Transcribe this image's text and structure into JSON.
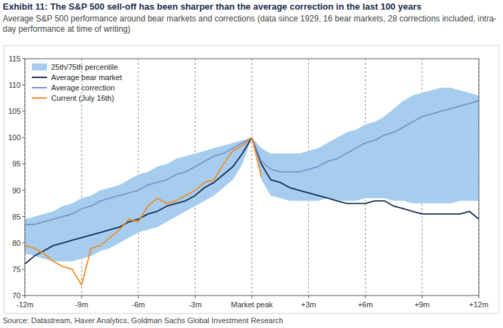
{
  "chart_data": {
    "type": "line",
    "title": "Exhibit 11: The S&P 500 sell-off has been sharper than the average correction in the last 100 years",
    "subtitle": "Average S&P 500 performance around bear markets and corrections (data since 1929, 16 bear markets, 28 corrections included, intra-day performance at time of writing)",
    "source": "Source: Datastream, Haver Analytics, Goldman Sachs Global Investment Research",
    "x": [
      -12,
      -11.5,
      -11,
      -10.5,
      -10,
      -9.5,
      -9,
      -8.5,
      -8,
      -7.5,
      -7,
      -6.5,
      -6,
      -5.5,
      -5,
      -4.5,
      -4,
      -3.5,
      -3,
      -2.5,
      -2,
      -1.5,
      -1,
      -0.5,
      0,
      0.5,
      1,
      1.5,
      2,
      2.5,
      3,
      3.5,
      4,
      4.5,
      5,
      5.5,
      6,
      6.5,
      7,
      7.5,
      8,
      8.5,
      9,
      9.5,
      10,
      10.5,
      11,
      11.5,
      12
    ],
    "xlim": [
      -12,
      12
    ],
    "xticks": [
      {
        "value": -12,
        "label": "-12m"
      },
      {
        "value": -9,
        "label": "-9m"
      },
      {
        "value": -6,
        "label": "-6m"
      },
      {
        "value": -3,
        "label": "-3m"
      },
      {
        "value": 0,
        "label": "Market peak"
      },
      {
        "value": 3,
        "label": "+3m"
      },
      {
        "value": 6,
        "label": "+6m"
      },
      {
        "value": 9,
        "label": "+9m"
      },
      {
        "value": 12,
        "label": "+12m"
      }
    ],
    "ylim": [
      70,
      115
    ],
    "yticks": [
      70,
      75,
      80,
      85,
      90,
      95,
      100,
      105,
      110,
      115
    ],
    "grid": true,
    "legend": "upper left",
    "series": [
      {
        "name": "25th/75th percentile",
        "type": "band",
        "color": "#a6cdee",
        "upper": [
          84.5,
          85,
          85.5,
          86,
          87,
          87.5,
          88.5,
          89,
          90,
          90.5,
          91,
          92,
          93,
          93.5,
          94.5,
          95,
          96,
          96.5,
          97,
          97.5,
          98,
          98.5,
          99,
          99.5,
          100,
          98,
          97,
          97,
          97,
          97,
          97.5,
          98,
          99,
          100,
          101,
          101.5,
          102.5,
          103,
          104,
          105.5,
          107,
          108,
          108.5,
          109,
          109.5,
          109.5,
          109,
          108.5,
          108
        ],
        "lower": [
          78,
          77.5,
          77,
          76.5,
          76.5,
          76.5,
          77,
          77.5,
          78.5,
          79,
          80,
          81,
          82,
          82.5,
          83,
          84,
          85,
          86,
          87,
          88,
          89,
          90.5,
          92,
          95,
          100,
          92,
          89,
          88.5,
          88,
          88,
          88,
          88,
          88.5,
          88,
          88,
          88,
          88.5,
          88.5,
          88.5,
          88,
          88,
          87.5,
          87.5,
          87.5,
          87.5,
          87.5,
          88,
          88,
          88
        ]
      },
      {
        "name": "Average bear market",
        "type": "line",
        "color": "#0f2a4e",
        "values": [
          76,
          77.5,
          78.5,
          79.5,
          80,
          80.5,
          81,
          81.5,
          82,
          82.5,
          83,
          84,
          84.5,
          85.5,
          86,
          87,
          87.5,
          88,
          89,
          90.5,
          91.5,
          93,
          94.5,
          97,
          100,
          95,
          92,
          91.5,
          90.5,
          90,
          89.5,
          89,
          88.5,
          88,
          87.5,
          87.5,
          87.5,
          88,
          88,
          87,
          86.5,
          86,
          85.5,
          85.5,
          85.5,
          85.5,
          85.5,
          86,
          84.5
        ]
      },
      {
        "name": "Average correction",
        "type": "line",
        "color": "#7b90c8",
        "values": [
          83.5,
          83.5,
          84,
          84.5,
          85,
          85.5,
          86.5,
          87,
          88,
          88.5,
          89,
          89.5,
          90,
          91,
          91.5,
          92,
          93,
          93.5,
          94.5,
          95.5,
          96.5,
          97,
          98,
          99,
          100,
          95.5,
          94,
          93.5,
          93.5,
          93.5,
          94,
          94.5,
          95.5,
          96,
          97,
          98,
          99,
          99.5,
          100.5,
          101,
          102,
          103,
          104,
          104.5,
          105,
          105.5,
          106,
          106.5,
          107
        ]
      },
      {
        "name": "Current (July 16th)",
        "type": "line",
        "color": "#f08a24",
        "values": [
          79.5,
          79,
          78,
          76.5,
          75.5,
          75,
          72,
          79,
          79.5,
          81,
          82.5,
          84.5,
          84,
          87,
          88.5,
          87.5,
          88,
          89,
          90,
          91.5,
          92,
          95,
          97.5,
          98.5,
          100,
          92.5,
          null,
          null,
          null,
          null,
          null,
          null,
          null,
          null,
          null,
          null,
          null,
          null,
          null,
          null,
          null,
          null,
          null,
          null,
          null,
          null,
          null,
          null,
          null
        ]
      }
    ]
  }
}
